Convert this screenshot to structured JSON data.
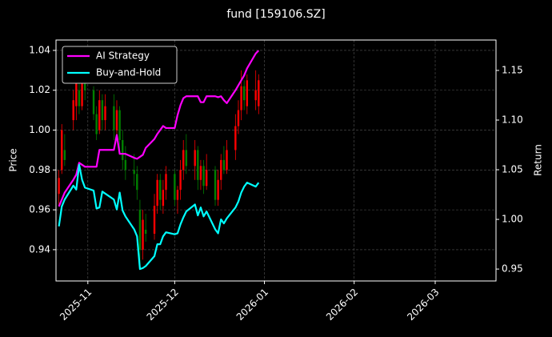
{
  "chart_data": {
    "type": "candlestick",
    "title": "fund [159106.SZ]",
    "ylabel": "Price",
    "y2label": "Return",
    "x": [
      -10,
      -9,
      -8,
      -5,
      -4,
      -3,
      -2,
      -1,
      2,
      3,
      4,
      5,
      6,
      9,
      10,
      11,
      12,
      13,
      16,
      17,
      18,
      19,
      20,
      23,
      24,
      25,
      26,
      27,
      30,
      31,
      32,
      33,
      34,
      37,
      38,
      39,
      40,
      41,
      44,
      45,
      46,
      47,
      48,
      51,
      52,
      53,
      54,
      55,
      58,
      59
    ],
    "candles": {
      "open": [
        0.968,
        0.98,
        0.99,
        1.005,
        1.012,
        1.02,
        1.012,
        1.028,
        1.02,
        1.008,
        1.0,
        1.015,
        1.005,
        1.012,
        1.0,
        1.01,
        0.995,
        0.985,
        0.98,
        0.978,
        0.96,
        0.94,
        0.95,
        0.948,
        0.962,
        0.975,
        0.962,
        0.97,
        0.978,
        0.965,
        0.97,
        0.98,
        0.99,
        0.982,
        0.99,
        0.975,
        0.982,
        0.972,
        0.98,
        0.965,
        0.975,
        0.985,
        0.98,
        0.99,
        1.002,
        1.01,
        1.022,
        1.012,
        1.015,
        1.012
      ],
      "high": [
        0.98,
        1.003,
        0.998,
        1.02,
        1.03,
        1.028,
        1.032,
        1.03,
        1.022,
        1.012,
        1.02,
        1.018,
        1.018,
        1.018,
        1.015,
        1.012,
        1.0,
        0.992,
        0.988,
        0.982,
        0.965,
        0.96,
        0.958,
        0.968,
        0.978,
        0.978,
        0.975,
        0.982,
        0.98,
        0.972,
        0.985,
        0.995,
        0.998,
        0.995,
        0.992,
        0.985,
        0.985,
        0.988,
        0.982,
        0.98,
        0.988,
        0.992,
        0.995,
        1.008,
        1.015,
        1.03,
        1.025,
        1.028,
        1.03,
        1.028
      ],
      "low": [
        0.962,
        0.978,
        0.982,
        1.0,
        1.005,
        1.008,
        1.01,
        1.015,
        1.005,
        0.995,
        0.998,
        1.0,
        1.0,
        0.995,
        0.995,
        0.99,
        0.98,
        0.975,
        0.972,
        0.965,
        0.93,
        0.935,
        0.944,
        0.945,
        0.958,
        0.96,
        0.958,
        0.965,
        0.962,
        0.958,
        0.965,
        0.975,
        0.978,
        0.975,
        0.97,
        0.97,
        0.968,
        0.97,
        0.962,
        0.962,
        0.97,
        0.978,
        0.978,
        0.985,
        0.998,
        1.005,
        1.01,
        1.008,
        1.01,
        1.008
      ],
      "close": [
        0.976,
        1.0,
        0.985,
        1.015,
        1.025,
        1.012,
        1.028,
        1.02,
        1.008,
        0.998,
        1.015,
        1.005,
        1.012,
        1.0,
        1.01,
        0.995,
        0.985,
        0.98,
        0.978,
        0.97,
        0.94,
        0.955,
        0.948,
        0.962,
        0.975,
        0.965,
        0.97,
        0.978,
        0.965,
        0.97,
        0.98,
        0.99,
        0.982,
        0.99,
        0.975,
        0.982,
        0.972,
        0.98,
        0.965,
        0.975,
        0.985,
        0.98,
        0.99,
        1.002,
        1.01,
        1.022,
        1.015,
        1.025,
        1.02,
        1.025
      ],
      "up_color": "#ff0000",
      "down_color": "#008000"
    },
    "series": [
      {
        "name": "AI Strategy",
        "color": "#ff00ff",
        "axis": "y2",
        "values": [
          1.013,
          1.02,
          1.027,
          1.04,
          1.045,
          1.057,
          1.055,
          1.053,
          1.053,
          1.053,
          1.07,
          1.07,
          1.07,
          1.07,
          1.085,
          1.066,
          1.066,
          1.066,
          1.062,
          1.061,
          1.063,
          1.065,
          1.072,
          1.081,
          1.086,
          1.09,
          1.094,
          1.092,
          1.092,
          1.105,
          1.115,
          1.122,
          1.124,
          1.124,
          1.124,
          1.118,
          1.118,
          1.124,
          1.124,
          1.123,
          1.124,
          1.12,
          1.117,
          1.13,
          1.135,
          1.14,
          1.145,
          1.152,
          1.167,
          1.17
        ]
      },
      {
        "name": "Buy-and-Hold",
        "color": "#00ffff",
        "axis": "y2",
        "values": [
          0.993,
          1.013,
          1.02,
          1.034,
          1.03,
          1.055,
          1.04,
          1.032,
          1.029,
          1.011,
          1.012,
          1.028,
          1.026,
          1.02,
          1.01,
          1.027,
          1.009,
          1.003,
          0.99,
          0.983,
          0.95,
          0.951,
          0.953,
          0.963,
          0.975,
          0.975,
          0.983,
          0.987,
          0.985,
          0.986,
          0.995,
          1.002,
          1.008,
          1.015,
          1.004,
          1.012,
          1.003,
          1.008,
          0.99,
          0.986,
          1.0,
          0.996,
          1.001,
          1.012,
          1.018,
          1.027,
          1.033,
          1.037,
          1.033,
          1.037
        ]
      }
    ],
    "xlim": [
      -11,
      141
    ],
    "xticks": [
      {
        "value": 0,
        "label": "2025-11"
      },
      {
        "value": 30,
        "label": "2025-12"
      },
      {
        "value": 61,
        "label": "2026-01"
      },
      {
        "value": 92,
        "label": "2026-02"
      },
      {
        "value": 120,
        "label": "2026-03"
      }
    ],
    "ylim": [
      0.9243,
      1.0452
    ],
    "yticks": [
      0.94,
      0.96,
      0.98,
      {
        "value": 1,
        "label": "1.00"
      },
      1.02,
      1.04
    ],
    "y2lim": [
      0.938,
      1.1806
    ],
    "y2ticks": [
      0.95,
      {
        "value": 1,
        "label": "1.00"
      },
      1.05,
      {
        "value": 1.1,
        "label": "1.10"
      },
      1.15
    ],
    "grid": true,
    "legend": "upper left"
  }
}
